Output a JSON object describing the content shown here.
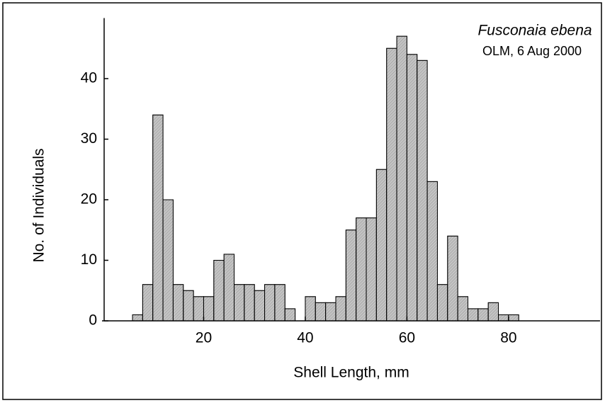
{
  "chart_data": {
    "type": "histogram",
    "xlabel": "Shell Length, mm",
    "ylabel": "No. of Individuals",
    "annotations": [
      "Fusconaia ebena",
      "OLM, 6 Aug 2000"
    ],
    "bins": [
      6,
      8,
      10,
      12,
      14,
      16,
      18,
      20,
      22,
      24,
      26,
      28,
      30,
      32,
      34,
      36,
      38,
      40,
      42,
      44,
      46,
      48,
      50,
      52,
      54,
      56,
      58,
      60,
      62,
      64,
      66,
      68,
      70,
      72,
      74,
      76,
      78,
      80,
      82
    ],
    "counts": [
      1,
      6,
      34,
      20,
      6,
      5,
      4,
      4,
      10,
      11,
      6,
      6,
      5,
      6,
      6,
      2,
      0,
      4,
      3,
      3,
      4,
      15,
      17,
      17,
      25,
      45,
      47,
      44,
      43,
      23,
      6,
      14,
      4,
      2,
      2,
      3,
      1,
      1
    ],
    "color": "#c4c4c4",
    "xlim": [
      0,
      98
    ],
    "ylim": [
      0,
      50
    ],
    "xticks": [
      20,
      40,
      60,
      80
    ],
    "yticks": [
      0,
      10,
      20,
      30,
      40
    ],
    "grid": false
  }
}
